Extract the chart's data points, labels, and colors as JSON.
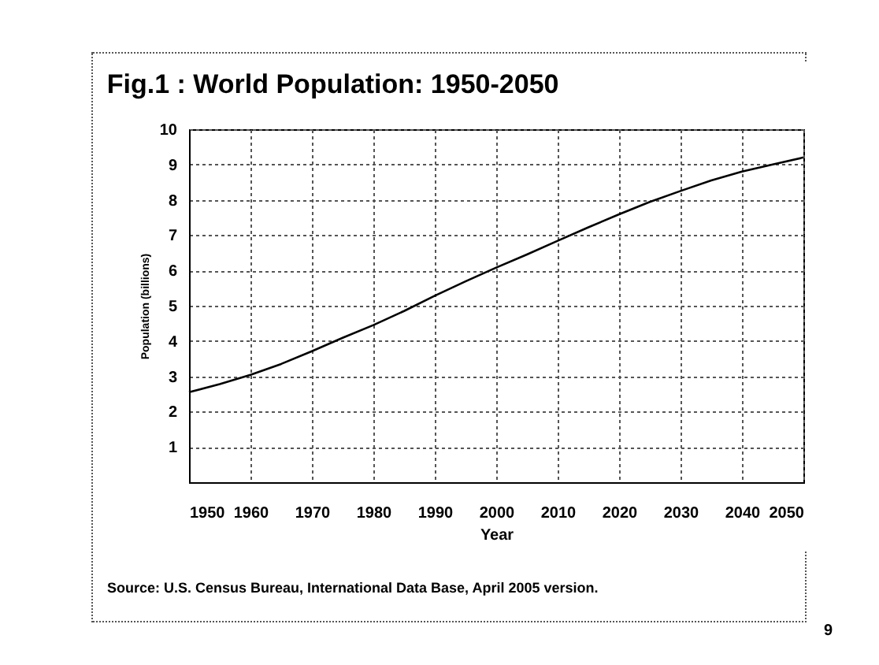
{
  "chart_data": {
    "type": "line",
    "title": "Fig.1 : World Population: 1950-2050",
    "xlabel": "Year",
    "ylabel": "Population (billions)",
    "x": [
      1950,
      1955,
      1960,
      1965,
      1970,
      1975,
      1980,
      1985,
      1990,
      1995,
      2000,
      2005,
      2010,
      2015,
      2020,
      2025,
      2030,
      2035,
      2040,
      2045,
      2050
    ],
    "series": [
      {
        "color": "#000000",
        "values": [
          2.55,
          2.78,
          3.04,
          3.35,
          3.71,
          4.09,
          4.45,
          4.85,
          5.28,
          5.69,
          6.08,
          6.45,
          6.84,
          7.22,
          7.59,
          7.94,
          8.25,
          8.55,
          8.8,
          9.0,
          9.2
        ]
      }
    ],
    "xlim": [
      1950,
      2050
    ],
    "xticks": [
      1950,
      1960,
      1970,
      1980,
      1990,
      2000,
      2010,
      2020,
      2030,
      2040,
      2050
    ],
    "ylim": [
      0,
      10
    ],
    "yticks": [
      1,
      2,
      3,
      4,
      5,
      6,
      7,
      8,
      9,
      10
    ],
    "grid": true,
    "marker": "none",
    "line_style": "solid",
    "annotations": [
      "Source: U.S. Census Bureau, International Data Base, April 2005 version.",
      "9"
    ]
  }
}
